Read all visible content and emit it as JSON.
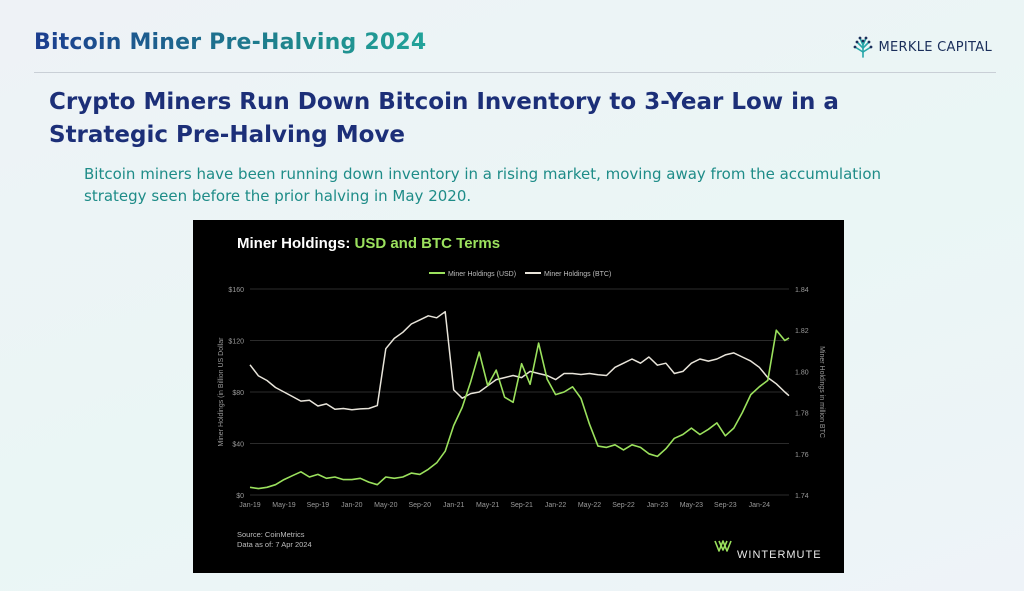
{
  "header": {
    "title": "Bitcoin Miner Pre-Halving 2024",
    "brand": "MERKLE CAPITAL",
    "brand_icon": "tree-icon"
  },
  "headline": "Crypto Miners Run Down Bitcoin Inventory to 3-Year Low in a Strategic Pre-Halving Move",
  "subtext": "Bitcoin miners have been running down inventory in a rising market, moving away from the accumulation strategy seen before the prior halving in May 2020.",
  "chart_data": {
    "type": "line",
    "title_prefix": "Miner Holdings: ",
    "title_highlight": "USD and BTC Terms",
    "ylabel_left": "Miner Holdings (in Billion  US Dollar",
    "ylabel_right": "Miner Holdings in million BTC",
    "yticks_left": [
      "$0",
      "$40",
      "$80",
      "$120",
      "$160"
    ],
    "yticks_right": [
      "1.74",
      "1.76",
      "1.78",
      "1.80",
      "1.82",
      "1.84"
    ],
    "ylim_left": [
      0,
      160
    ],
    "ylim_right": [
      1.74,
      1.84
    ],
    "xticks": [
      "Jan-19",
      "May-19",
      "Sep-19",
      "Jan-20",
      "May-20",
      "Sep-20",
      "Jan-21",
      "May-21",
      "Sep-21",
      "Jan-22",
      "May-22",
      "Sep-22",
      "Jan-23",
      "May-23",
      "Sep-23",
      "Jan-24"
    ],
    "x_extent_months": 63.5,
    "grid": "horizontal",
    "legend_position": "top-center",
    "colors": {
      "usd": "#9be15d",
      "btc": "#e8e4da",
      "highlight": "#9be15d",
      "background": "#000000"
    },
    "series": [
      {
        "name": "Miner Holdings (USD)",
        "axis": "left",
        "points": [
          [
            0,
            6
          ],
          [
            1,
            5
          ],
          [
            2,
            6
          ],
          [
            3,
            8
          ],
          [
            4,
            12
          ],
          [
            5,
            15
          ],
          [
            6,
            18
          ],
          [
            7,
            14
          ],
          [
            8,
            16
          ],
          [
            9,
            13
          ],
          [
            10,
            14
          ],
          [
            11,
            12
          ],
          [
            12,
            12
          ],
          [
            13,
            13
          ],
          [
            14,
            10
          ],
          [
            15,
            8
          ],
          [
            16,
            14
          ],
          [
            17,
            13
          ],
          [
            18,
            14
          ],
          [
            19,
            17
          ],
          [
            20,
            16
          ],
          [
            21,
            20
          ],
          [
            22,
            25
          ],
          [
            23,
            34
          ],
          [
            24,
            54
          ],
          [
            25,
            68
          ],
          [
            26,
            88
          ],
          [
            27,
            111
          ],
          [
            28,
            85
          ],
          [
            29,
            97
          ],
          [
            30,
            76
          ],
          [
            31,
            72
          ],
          [
            32,
            102
          ],
          [
            33,
            86
          ],
          [
            34,
            118
          ],
          [
            35,
            90
          ],
          [
            36,
            78
          ],
          [
            37,
            80
          ],
          [
            38,
            84
          ],
          [
            39,
            75
          ],
          [
            40,
            55
          ],
          [
            41,
            38
          ],
          [
            42,
            37
          ],
          [
            43,
            39
          ],
          [
            44,
            35
          ],
          [
            45,
            39
          ],
          [
            46,
            37
          ],
          [
            47,
            32
          ],
          [
            48,
            30
          ],
          [
            49,
            36
          ],
          [
            50,
            44
          ],
          [
            51,
            47
          ],
          [
            52,
            52
          ],
          [
            53,
            47
          ],
          [
            54,
            51
          ],
          [
            55,
            56
          ],
          [
            56,
            46
          ],
          [
            57,
            52
          ],
          [
            58,
            64
          ],
          [
            59,
            78
          ],
          [
            60,
            84
          ],
          [
            61,
            89
          ],
          [
            62,
            128
          ],
          [
            63,
            120
          ],
          [
            63.5,
            122
          ]
        ]
      },
      {
        "name": "Miner Holdings (BTC)",
        "axis": "right",
        "points": [
          [
            0,
            1.8032
          ],
          [
            1,
            1.7978
          ],
          [
            2,
            1.7956
          ],
          [
            3,
            1.7922
          ],
          [
            4,
            1.79
          ],
          [
            5,
            1.7878
          ],
          [
            6,
            1.7856
          ],
          [
            7,
            1.786
          ],
          [
            8,
            1.7832
          ],
          [
            9,
            1.7842
          ],
          [
            10,
            1.7816
          ],
          [
            11,
            1.782
          ],
          [
            12,
            1.7814
          ],
          [
            13,
            1.7818
          ],
          [
            14,
            1.782
          ],
          [
            15,
            1.7834
          ],
          [
            16,
            1.811
          ],
          [
            17,
            1.816
          ],
          [
            18,
            1.819
          ],
          [
            19,
            1.823
          ],
          [
            20,
            1.825
          ],
          [
            21,
            1.827
          ],
          [
            22,
            1.826
          ],
          [
            23,
            1.829
          ],
          [
            24,
            1.791
          ],
          [
            25,
            1.787
          ],
          [
            26,
            1.7892
          ],
          [
            27,
            1.79
          ],
          [
            28,
            1.793
          ],
          [
            29,
            1.796
          ],
          [
            30,
            1.797
          ],
          [
            31,
            1.798
          ],
          [
            32,
            1.797
          ],
          [
            33,
            1.8
          ],
          [
            34,
            1.799
          ],
          [
            35,
            1.798
          ],
          [
            36,
            1.796
          ],
          [
            37,
            1.799
          ],
          [
            38,
            1.799
          ],
          [
            39,
            1.7985
          ],
          [
            40,
            1.799
          ],
          [
            41,
            1.7984
          ],
          [
            42,
            1.798
          ],
          [
            43,
            1.802
          ],
          [
            44,
            1.804
          ],
          [
            45,
            1.806
          ],
          [
            46,
            1.804
          ],
          [
            47,
            1.807
          ],
          [
            48,
            1.803
          ],
          [
            49,
            1.804
          ],
          [
            50,
            1.799
          ],
          [
            51,
            1.8
          ],
          [
            52,
            1.804
          ],
          [
            53,
            1.806
          ],
          [
            54,
            1.805
          ],
          [
            55,
            1.806
          ],
          [
            56,
            1.808
          ],
          [
            57,
            1.809
          ],
          [
            58,
            1.807
          ],
          [
            59,
            1.805
          ],
          [
            60,
            1.802
          ],
          [
            61,
            1.797
          ],
          [
            62,
            1.794
          ],
          [
            63,
            1.79
          ],
          [
            63.5,
            1.7882
          ]
        ]
      }
    ],
    "source": "Source: CoinMetrics",
    "asof": "Data as of: 7 Apr 2024",
    "watermark": "WINTERMUTE"
  }
}
